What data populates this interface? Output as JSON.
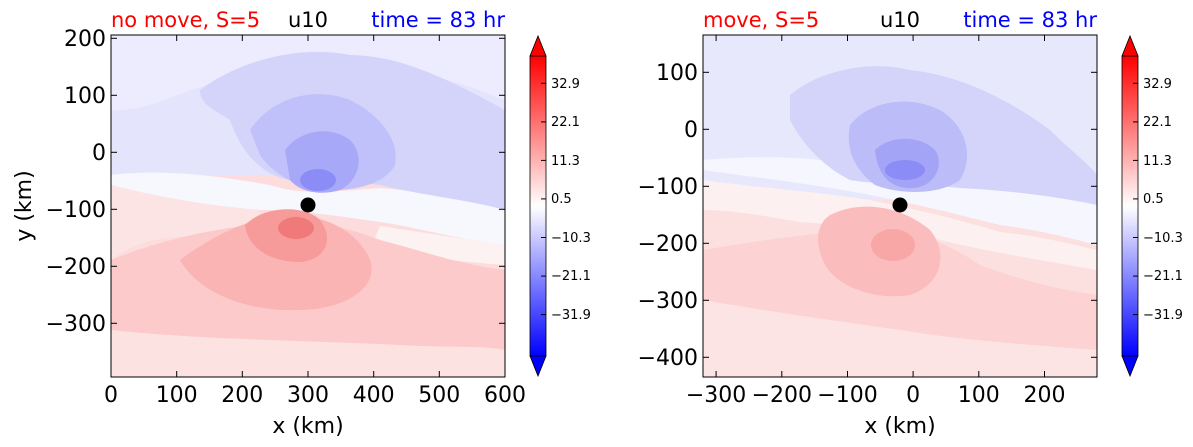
{
  "chart_data": [
    {
      "type": "heatmap",
      "title_left": "no move, S=5",
      "title_center": "u10",
      "title_right": "time = 83 hr",
      "title_left_color": "#ff0000",
      "title_center_color": "#000000",
      "title_right_color": "#0000ff",
      "xlabel": "x (km)",
      "ylabel": "y (km)",
      "xlim": [
        0,
        600
      ],
      "ylim": [
        -395,
        205
      ],
      "xticks": [
        0,
        100,
        200,
        300,
        400,
        500,
        600
      ],
      "yticks": [
        200,
        100,
        0,
        -100,
        -200,
        -300
      ],
      "xtick_labels": [
        "0",
        "100",
        "200",
        "300",
        "400",
        "500",
        "600"
      ],
      "ytick_labels": [
        "200",
        "100",
        "0",
        "−100",
        "−200",
        "−300"
      ],
      "center_marker": {
        "x": 300,
        "y": -95
      },
      "field": {
        "negative_peak": -14,
        "positive_peak": 13,
        "background": 5
      },
      "colorbar": {
        "range": [
          -42,
          42
        ],
        "colors": {
          "low": "#0000ff",
          "mid": "#ffffff",
          "high": "#ff0000"
        },
        "tick_values": [
          32.9,
          22.1,
          11.3,
          0.5,
          -10.3,
          -21.1,
          -31.9
        ],
        "tick_labels": [
          "32.9",
          "22.1",
          "11.3",
          "0.5",
          "−10.3",
          "−21.1",
          "−31.9"
        ],
        "extend": "both"
      }
    },
    {
      "type": "heatmap",
      "title_left": "move, S=5",
      "title_center": "u10",
      "title_right": "time = 83 hr",
      "title_left_color": "#ff0000",
      "title_center_color": "#000000",
      "title_right_color": "#0000ff",
      "xlabel": "x (km)",
      "ylabel": "",
      "xlim": [
        -320,
        280
      ],
      "ylim": [
        -435,
        165
      ],
      "xticks": [
        -300,
        -200,
        -100,
        0,
        100,
        200
      ],
      "yticks": [
        100,
        0,
        -100,
        -200,
        -300,
        -400
      ],
      "xtick_labels": [
        "−300",
        "−200",
        "−100",
        "0",
        "100",
        "200"
      ],
      "ytick_labels": [
        "100",
        "0",
        "−100",
        "−200",
        "−300",
        "−400"
      ],
      "center_marker": {
        "x": -15,
        "y": -133
      },
      "field": {
        "negative_peak": -14,
        "positive_peak": 9,
        "background": 4
      },
      "colorbar": {
        "range": [
          -42,
          42
        ],
        "colors": {
          "low": "#0000ff",
          "mid": "#ffffff",
          "high": "#ff0000"
        },
        "tick_values": [
          32.9,
          22.1,
          11.3,
          0.5,
          -10.3,
          -21.1,
          -31.9
        ],
        "tick_labels": [
          "32.9",
          "22.1",
          "11.3",
          "0.5",
          "−10.3",
          "−21.1",
          "−31.9"
        ],
        "extend": "both"
      }
    }
  ]
}
